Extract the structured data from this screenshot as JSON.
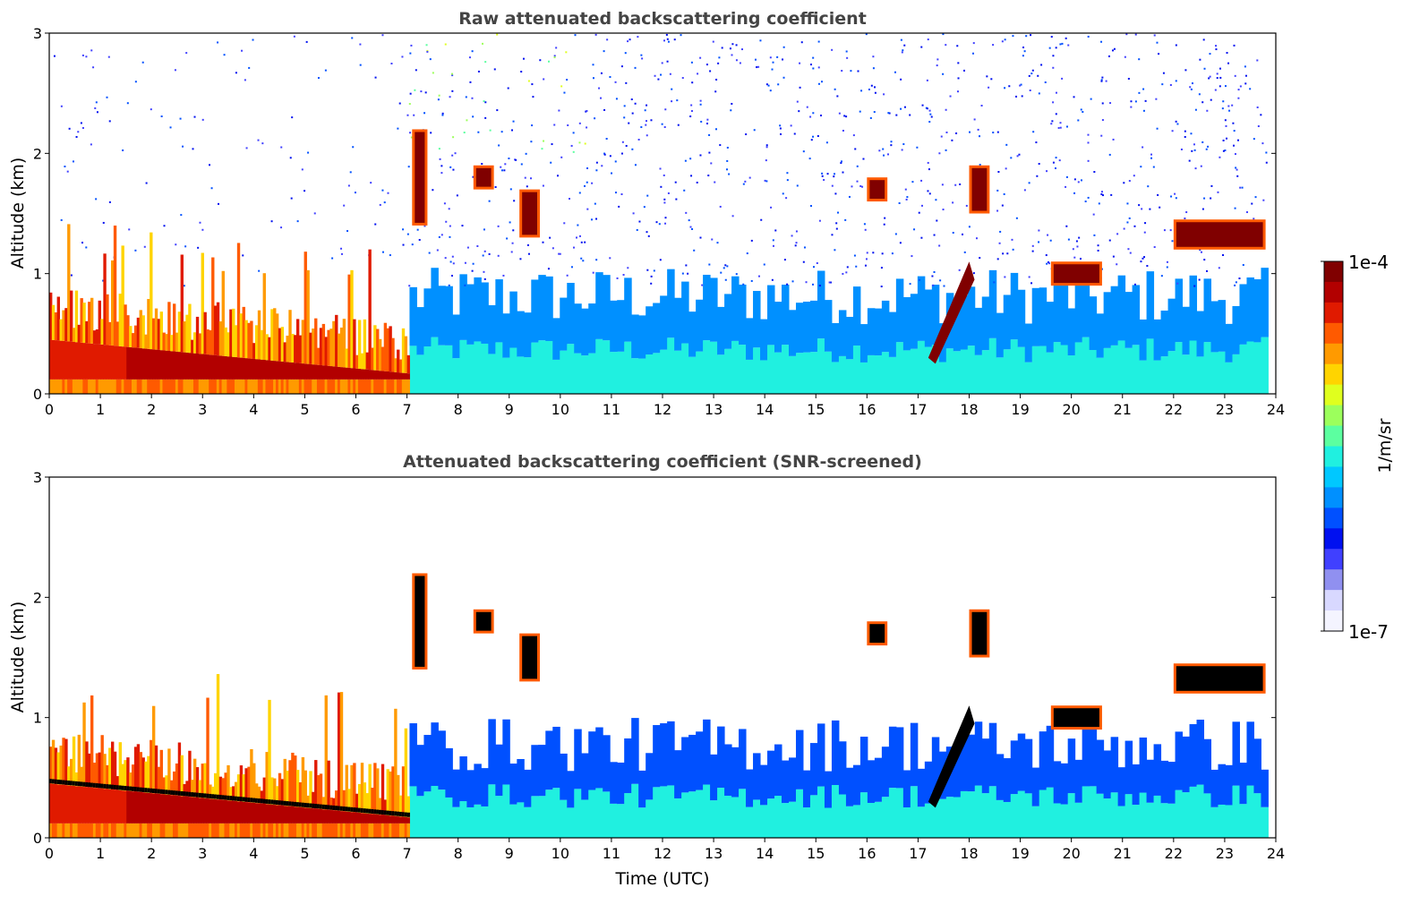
{
  "figure": {
    "colorbar": {
      "label": "1/m/sr",
      "top_label": "1e-4",
      "bottom_label": "1e-7",
      "colormap": [
        "#800000",
        "#b20000",
        "#e01a00",
        "#ff5a00",
        "#ff9a00",
        "#ffd400",
        "#e0ff1e",
        "#9cff5c",
        "#5cffa0",
        "#20f0e0",
        "#00c8ff",
        "#0090ff",
        "#0050ff",
        "#0010f0",
        "#4040ff",
        "#9090f0",
        "#d8d8ff",
        "#f4f4ff"
      ]
    }
  },
  "chart_data": [
    {
      "type": "heatmap",
      "title": "Raw attenuated backscattering coefficient",
      "xlabel": "",
      "ylabel": "Altitude (km)",
      "xlim": [
        0,
        24
      ],
      "ylim": [
        0,
        3
      ],
      "x_ticks": [
        "0",
        "1",
        "2",
        "3",
        "4",
        "5",
        "6",
        "7",
        "8",
        "9",
        "10",
        "11",
        "12",
        "13",
        "14",
        "15",
        "16",
        "17",
        "18",
        "19",
        "20",
        "21",
        "22",
        "23",
        "24"
      ],
      "y_ticks": [
        "0",
        "1",
        "2",
        "3"
      ],
      "colorscale": "log10, 1e-7 to 1e-4 1/m/sr",
      "features": [
        {
          "name": "boundary layer aerosol (strong)",
          "time_start": 0,
          "time_end": 7.05,
          "alt_top_km": 0.8
        },
        {
          "name": "elevated cloud",
          "time_start": 7.1,
          "time_end": 7.4,
          "alt_bottom_km": 1.4,
          "alt_top_km": 2.2
        },
        {
          "name": "cloud",
          "time_start": 8.3,
          "time_end": 8.7,
          "alt_bottom_km": 1.7,
          "alt_top_km": 1.9
        },
        {
          "name": "cloud",
          "time_start": 9.2,
          "time_end": 9.6,
          "alt_bottom_km": 1.3,
          "alt_top_km": 1.7
        },
        {
          "name": "cloud",
          "time_start": 16.0,
          "time_end": 16.4,
          "alt_bottom_km": 1.6,
          "alt_top_km": 1.8
        },
        {
          "name": "cloud",
          "time_start": 18.0,
          "time_end": 18.4,
          "alt_bottom_km": 1.5,
          "alt_top_km": 1.9
        },
        {
          "name": "cloud layer",
          "time_start": 19.6,
          "time_end": 20.6,
          "alt_bottom_km": 0.9,
          "alt_top_km": 1.1
        },
        {
          "name": "cloud layer",
          "time_start": 22.0,
          "time_end": 23.8,
          "alt_bottom_km": 1.2,
          "alt_top_km": 1.45
        },
        {
          "name": "rising aerosol layer top",
          "time_start": 17.2,
          "time_end": 18.0,
          "alt_bottom_km": 0.3,
          "alt_top_km": 1.1
        }
      ]
    },
    {
      "type": "heatmap",
      "title": "Attenuated backscattering coefficient (SNR-screened)",
      "xlabel": "Time (UTC)",
      "ylabel": "Altitude (km)",
      "xlim": [
        0,
        24
      ],
      "ylim": [
        0,
        3
      ],
      "x_ticks": [
        "0",
        "1",
        "2",
        "3",
        "4",
        "5",
        "6",
        "7",
        "8",
        "9",
        "10",
        "11",
        "12",
        "13",
        "14",
        "15",
        "16",
        "17",
        "18",
        "19",
        "20",
        "21",
        "22",
        "23",
        "24"
      ],
      "y_ticks": [
        "0",
        "1",
        "2",
        "3"
      ],
      "colorscale": "log10, 1e-7 to 1e-4 1/m/sr",
      "features": [
        {
          "name": "boundary layer aerosol (strong)",
          "time_start": 0,
          "time_end": 7.05,
          "alt_top_km": 0.8
        },
        {
          "name": "elevated cloud",
          "time_start": 7.1,
          "time_end": 7.4,
          "alt_bottom_km": 1.4,
          "alt_top_km": 2.2
        },
        {
          "name": "cloud",
          "time_start": 8.3,
          "time_end": 8.7,
          "alt_bottom_km": 1.7,
          "alt_top_km": 1.9
        },
        {
          "name": "cloud",
          "time_start": 9.2,
          "time_end": 9.6,
          "alt_bottom_km": 1.3,
          "alt_top_km": 1.7
        },
        {
          "name": "cloud",
          "time_start": 16.0,
          "time_end": 16.4,
          "alt_bottom_km": 1.6,
          "alt_top_km": 1.8
        },
        {
          "name": "cloud",
          "time_start": 18.0,
          "time_end": 18.4,
          "alt_bottom_km": 1.5,
          "alt_top_km": 1.9
        },
        {
          "name": "cloud layer",
          "time_start": 19.6,
          "time_end": 20.6,
          "alt_bottom_km": 0.9,
          "alt_top_km": 1.1
        },
        {
          "name": "cloud layer",
          "time_start": 22.0,
          "time_end": 23.8,
          "alt_bottom_km": 1.2,
          "alt_top_km": 1.45
        },
        {
          "name": "rising aerosol layer top",
          "time_start": 17.2,
          "time_end": 18.0,
          "alt_bottom_km": 0.3,
          "alt_top_km": 1.1
        }
      ]
    }
  ]
}
